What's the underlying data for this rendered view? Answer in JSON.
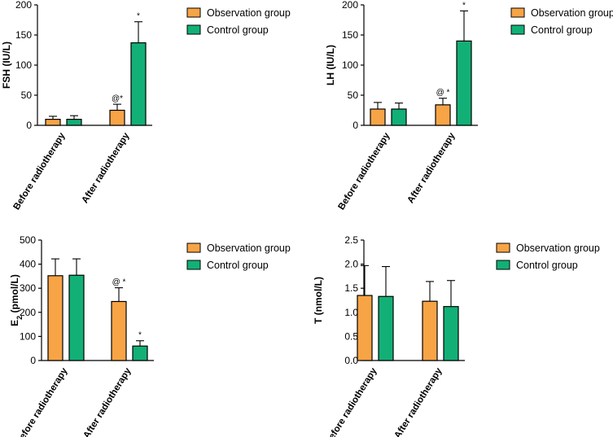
{
  "colors": {
    "observation": "#F7A446",
    "control": "#12B076",
    "stroke": "#000000"
  },
  "chart_data": [
    {
      "type": "bar",
      "ylabel": "FSH (IU/L)",
      "ylim": [
        0,
        200
      ],
      "yticks": [
        0,
        50,
        100,
        150,
        200
      ],
      "categories": [
        "Before radiotherapy",
        "After radiotherapy"
      ],
      "series": [
        {
          "name": "Observation group",
          "values": [
            10,
            25
          ],
          "errors": [
            5,
            10
          ],
          "annotations": [
            "",
            "@*"
          ]
        },
        {
          "name": "Control group",
          "values": [
            10,
            137
          ],
          "errors": [
            6,
            35
          ],
          "annotations": [
            "",
            "*"
          ]
        }
      ]
    },
    {
      "type": "bar",
      "ylabel": "LH (IU/L)",
      "ylim": [
        0,
        200
      ],
      "yticks": [
        0,
        50,
        100,
        150,
        200
      ],
      "categories": [
        "Before radiotherapy",
        "After radiotherapy"
      ],
      "series": [
        {
          "name": "Observation group",
          "values": [
            27,
            34
          ],
          "errors": [
            11,
            11
          ],
          "annotations": [
            "",
            "@ *"
          ]
        },
        {
          "name": "Control group",
          "values": [
            27,
            140
          ],
          "errors": [
            10,
            50
          ],
          "annotations": [
            "",
            "*"
          ]
        }
      ]
    },
    {
      "type": "bar",
      "ylabel": "E2 (pmol/L)",
      "ylabel_main": "E",
      "ylabel_sub": "2",
      "ylabel_rest": " (pmol/L)",
      "ylim": [
        0,
        500
      ],
      "yticks": [
        0,
        100,
        200,
        300,
        400,
        500
      ],
      "categories": [
        "Before radiotherapy",
        "After radiotherapy"
      ],
      "series": [
        {
          "name": "Observation group",
          "values": [
            352,
            245
          ],
          "errors": [
            70,
            57
          ],
          "annotations": [
            "",
            "@ *"
          ]
        },
        {
          "name": "Control group",
          "values": [
            354,
            60
          ],
          "errors": [
            68,
            22
          ],
          "annotations": [
            "",
            "*"
          ]
        }
      ]
    },
    {
      "type": "bar",
      "ylabel": "T (nmol/L)",
      "ylim": [
        0,
        2.5
      ],
      "yticks": [
        "0.0",
        "0.5",
        "1.0",
        "1.5",
        "2.0",
        "2.5"
      ],
      "categories": [
        "Before radiotherapy",
        "After radiotherapy"
      ],
      "series": [
        {
          "name": "Observation group",
          "values": [
            1.35,
            1.23
          ],
          "errors": [
            0.62,
            0.41
          ],
          "annotations": [
            "",
            ""
          ]
        },
        {
          "name": "Control group",
          "values": [
            1.33,
            1.12
          ],
          "errors": [
            0.62,
            0.54
          ],
          "annotations": [
            "",
            ""
          ]
        }
      ]
    }
  ]
}
